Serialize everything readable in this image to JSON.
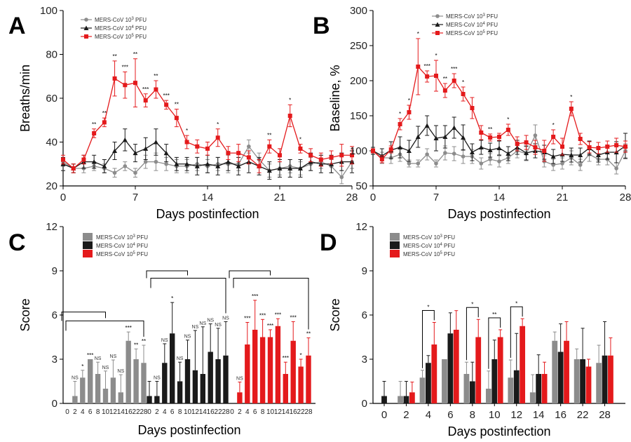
{
  "colors": {
    "low": "#8c8c8c",
    "mid": "#1a1a1a",
    "high": "#e41a1c"
  },
  "legend": {
    "series": [
      {
        "pre": "MERS-CoV 10",
        "exp": "3",
        "post": " PFU",
        "color": "#8c8c8c",
        "marker": "circle"
      },
      {
        "pre": "MERS-CoV 10",
        "exp": "4",
        "post": " PFU",
        "color": "#1a1a1a",
        "marker": "triangle"
      },
      {
        "pre": "MERS-CoV 10",
        "exp": "5",
        "post": " PFU",
        "color": "#e41a1c",
        "marker": "square"
      }
    ]
  },
  "chart_data": [
    {
      "id": "A",
      "type": "line",
      "xlabel": "Days postinfection",
      "ylabel": "Breaths/min",
      "xlim": [
        0,
        28
      ],
      "xticks": [
        0,
        7,
        14,
        21,
        28
      ],
      "ylim": [
        20,
        100
      ],
      "yticks": [
        20,
        40,
        60,
        80,
        100
      ],
      "x": [
        0,
        1,
        2,
        3,
        4,
        5,
        6,
        7,
        8,
        9,
        10,
        11,
        12,
        13,
        14,
        15,
        16,
        17,
        18,
        19,
        20,
        21,
        22,
        23,
        24,
        25,
        26,
        27,
        28
      ],
      "series": [
        {
          "name": "MERS-CoV 10^3 PFU",
          "values": [
            31,
            28,
            28,
            29,
            28,
            26,
            29,
            26,
            31,
            31,
            30,
            29,
            29,
            30,
            29,
            30,
            30,
            30,
            38,
            32,
            27,
            28,
            29,
            28,
            30,
            31,
            29,
            24,
            31
          ],
          "err": [
            2,
            2,
            2,
            2,
            2,
            2,
            2,
            2,
            3,
            4,
            3,
            3,
            3,
            3,
            3,
            3,
            4,
            3,
            3,
            3,
            3,
            3,
            3,
            3,
            3,
            3,
            3,
            3,
            3
          ]
        },
        {
          "name": "MERS-CoV 10^4 PFU",
          "values": [
            30,
            28,
            31,
            31,
            29,
            36,
            41,
            35,
            37,
            40,
            35,
            30,
            30,
            29,
            30,
            29,
            31,
            29,
            31,
            29,
            27,
            28,
            28,
            28,
            31,
            30,
            30,
            31,
            31
          ],
          "err": [
            3,
            2,
            3,
            3,
            3,
            4,
            5,
            4,
            5,
            6,
            4,
            3,
            3,
            4,
            4,
            4,
            4,
            4,
            5,
            4,
            4,
            4,
            4,
            4,
            4,
            4,
            4,
            4,
            5
          ]
        },
        {
          "name": "MERS-CoV 10^5 PFU",
          "values": [
            32,
            28,
            32,
            44,
            49,
            69,
            66,
            67,
            59,
            64,
            57,
            51,
            40,
            38,
            37,
            42,
            35,
            35,
            33,
            29,
            38,
            34,
            52,
            37,
            34,
            32,
            33,
            34,
            34
          ],
          "err": [
            2,
            2,
            2,
            2,
            2,
            8,
            6,
            11,
            3,
            4,
            2,
            4,
            3,
            3,
            3,
            4,
            3,
            4,
            3,
            3,
            3,
            3,
            5,
            2,
            3,
            3,
            3,
            5,
            4
          ]
        }
      ],
      "annotations": [
        {
          "x": 3,
          "text": "**"
        },
        {
          "x": 4,
          "text": "**"
        },
        {
          "x": 5,
          "text": "**"
        },
        {
          "x": 6,
          "text": "***"
        },
        {
          "x": 7,
          "text": "**"
        },
        {
          "x": 8,
          "text": "***"
        },
        {
          "x": 9,
          "text": "**"
        },
        {
          "x": 10,
          "text": "***"
        },
        {
          "x": 11,
          "text": "**"
        },
        {
          "x": 12,
          "text": "*"
        },
        {
          "x": 15,
          "text": "*"
        },
        {
          "x": 20,
          "text": "**"
        },
        {
          "x": 22,
          "text": "*"
        },
        {
          "x": 23,
          "text": "*"
        }
      ]
    },
    {
      "id": "B",
      "type": "line",
      "xlabel": "Days postinfection",
      "ylabel": "Baseline, %",
      "xlim": [
        0,
        28
      ],
      "xticks": [
        0,
        7,
        14,
        21,
        28
      ],
      "ylim": [
        50,
        300
      ],
      "yticks": [
        50,
        100,
        150,
        200,
        250,
        300
      ],
      "x": [
        0,
        1,
        2,
        3,
        4,
        5,
        6,
        7,
        8,
        9,
        10,
        11,
        12,
        13,
        14,
        15,
        16,
        17,
        18,
        19,
        20,
        21,
        22,
        23,
        24,
        25,
        26,
        27,
        28
      ],
      "series": [
        {
          "name": "MERS-CoV 10^3 PFU",
          "values": [
            100,
            90,
            90,
            95,
            82,
            82,
            95,
            82,
            97,
            96,
            92,
            92,
            82,
            88,
            85,
            90,
            100,
            96,
            122,
            85,
            80,
            82,
            90,
            80,
            95,
            88,
            88,
            75,
            100
          ],
          "err": [
            5,
            8,
            8,
            10,
            5,
            5,
            8,
            5,
            10,
            10,
            10,
            10,
            8,
            8,
            8,
            8,
            10,
            10,
            15,
            8,
            8,
            8,
            10,
            8,
            10,
            8,
            8,
            8,
            10
          ]
        },
        {
          "name": "MERS-CoV 10^4 PFU",
          "values": [
            100,
            93,
            101,
            105,
            100,
            120,
            136,
            118,
            120,
            133,
            119,
            98,
            105,
            101,
            104,
            96,
            105,
            97,
            100,
            98,
            92,
            95,
            94,
            94,
            104,
            94,
            98,
            98,
            107
          ],
          "err": [
            5,
            10,
            12,
            15,
            15,
            15,
            14,
            18,
            16,
            15,
            18,
            12,
            10,
            10,
            10,
            10,
            10,
            10,
            10,
            10,
            10,
            10,
            10,
            10,
            10,
            10,
            10,
            15,
            18
          ]
        },
        {
          "name": "MERS-CoV 10^5 PFU",
          "values": [
            100,
            88,
            102,
            138,
            155,
            220,
            206,
            207,
            186,
            200,
            181,
            161,
            126,
            119,
            120,
            130,
            110,
            112,
            105,
            100,
            120,
            106,
            160,
            117,
            105,
            104,
            106,
            108,
            106
          ],
          "err": [
            3,
            5,
            5,
            8,
            10,
            40,
            8,
            22,
            10,
            10,
            10,
            15,
            10,
            5,
            5,
            8,
            10,
            10,
            10,
            15,
            10,
            12,
            10,
            8,
            8,
            8,
            8,
            10,
            8
          ]
        }
      ],
      "annotations": [
        {
          "x": 3,
          "text": "*"
        },
        {
          "x": 4,
          "text": "*"
        },
        {
          "x": 5,
          "text": "*"
        },
        {
          "x": 6,
          "text": "***"
        },
        {
          "x": 7,
          "text": "*"
        },
        {
          "x": 8,
          "text": "**"
        },
        {
          "x": 9,
          "text": "***"
        },
        {
          "x": 10,
          "text": "*"
        },
        {
          "x": 13,
          "text": "**"
        },
        {
          "x": 15,
          "text": "*"
        },
        {
          "x": 20,
          "text": "*"
        },
        {
          "x": 22,
          "text": "*"
        }
      ]
    },
    {
      "id": "C",
      "type": "bar",
      "xlabel": "Days postinfection",
      "ylabel": "Score",
      "ylim": [
        0,
        12
      ],
      "yticks": [
        0,
        3,
        6,
        9,
        12
      ],
      "categories": [
        "0",
        "2",
        "4",
        "6",
        "8",
        "10",
        "12",
        "14",
        "16",
        "22",
        "28"
      ],
      "series": [
        {
          "name": "MERS-CoV 10^3 PFU",
          "values": [
            0,
            0.5,
            1.75,
            3.0,
            2.0,
            1.0,
            1.75,
            0.75,
            4.25,
            3.0,
            2.75
          ],
          "err": [
            0,
            1.0,
            0.5,
            0,
            0.8,
            1.2,
            1.2,
            1.2,
            0.6,
            0.7,
            1.2
          ],
          "labels": [
            "",
            "NS",
            "*",
            "***",
            "NS",
            "NS",
            "NS",
            "NS",
            "***",
            "**",
            "**"
          ]
        },
        {
          "name": "MERS-CoV 10^4 PFU",
          "values": [
            0.5,
            0.5,
            2.75,
            4.75,
            1.5,
            3.0,
            2.25,
            2.0,
            3.5,
            3.0,
            3.25
          ],
          "err": [
            1.0,
            1.0,
            1.3,
            2.1,
            1.3,
            1.3,
            2.7,
            3.2,
            1.9,
            2.1,
            2.3
          ],
          "labels": [
            "",
            "NS",
            "NS",
            "*",
            "NS",
            "NS",
            "NS",
            "NS",
            "NS",
            "NS",
            "NS"
          ]
        },
        {
          "name": "MERS-CoV 10^5 PFU",
          "values": [
            0,
            0.75,
            4.0,
            5.0,
            4.5,
            4.5,
            5.25,
            2.0,
            4.25,
            2.5,
            3.25
          ],
          "err": [
            0,
            0.7,
            1.5,
            2.0,
            1.2,
            0.5,
            0.5,
            0.8,
            1.3,
            0.5,
            1.2
          ],
          "labels": [
            "",
            "NS",
            "***",
            "***",
            "***",
            "***",
            "***",
            "***",
            "***",
            "*",
            "**"
          ]
        }
      ]
    },
    {
      "id": "D",
      "type": "bar",
      "xlabel": "Days postinfection",
      "ylabel": "Score",
      "ylim": [
        0,
        12
      ],
      "yticks": [
        0,
        3,
        6,
        9,
        12
      ],
      "categories": [
        "0",
        "2",
        "4",
        "6",
        "8",
        "10",
        "12",
        "14",
        "16",
        "22",
        "28"
      ],
      "series": [
        {
          "name": "MERS-CoV 10^3 PFU",
          "values": [
            0,
            0.5,
            1.75,
            3.0,
            2.0,
            1.0,
            1.75,
            0.75,
            4.25,
            3.0,
            2.75
          ],
          "err": [
            0,
            1.0,
            0.5,
            0,
            0.8,
            1.2,
            1.2,
            1.2,
            0.6,
            0.7,
            1.2
          ]
        },
        {
          "name": "MERS-CoV 10^4 PFU",
          "values": [
            0.5,
            0.5,
            2.75,
            4.75,
            1.5,
            3.0,
            2.25,
            2.0,
            3.5,
            3.0,
            3.25
          ],
          "err": [
            1.0,
            1.0,
            0.5,
            1.4,
            1.3,
            1.3,
            2.5,
            1.3,
            1.9,
            2.1,
            2.3
          ]
        },
        {
          "name": "MERS-CoV 10^5 PFU",
          "values": [
            0,
            0.75,
            4.0,
            5.0,
            4.5,
            4.5,
            5.25,
            2.0,
            4.25,
            2.5,
            3.25
          ],
          "err": [
            0,
            0.7,
            1.5,
            1.3,
            1.2,
            0.5,
            0.5,
            0.8,
            1.3,
            0.5,
            1.2
          ]
        }
      ],
      "brackets": [
        {
          "category": "4",
          "text": "*"
        },
        {
          "category": "8",
          "text": "*"
        },
        {
          "category": "10",
          "text": "**"
        },
        {
          "category": "12",
          "text": "*"
        }
      ]
    }
  ]
}
